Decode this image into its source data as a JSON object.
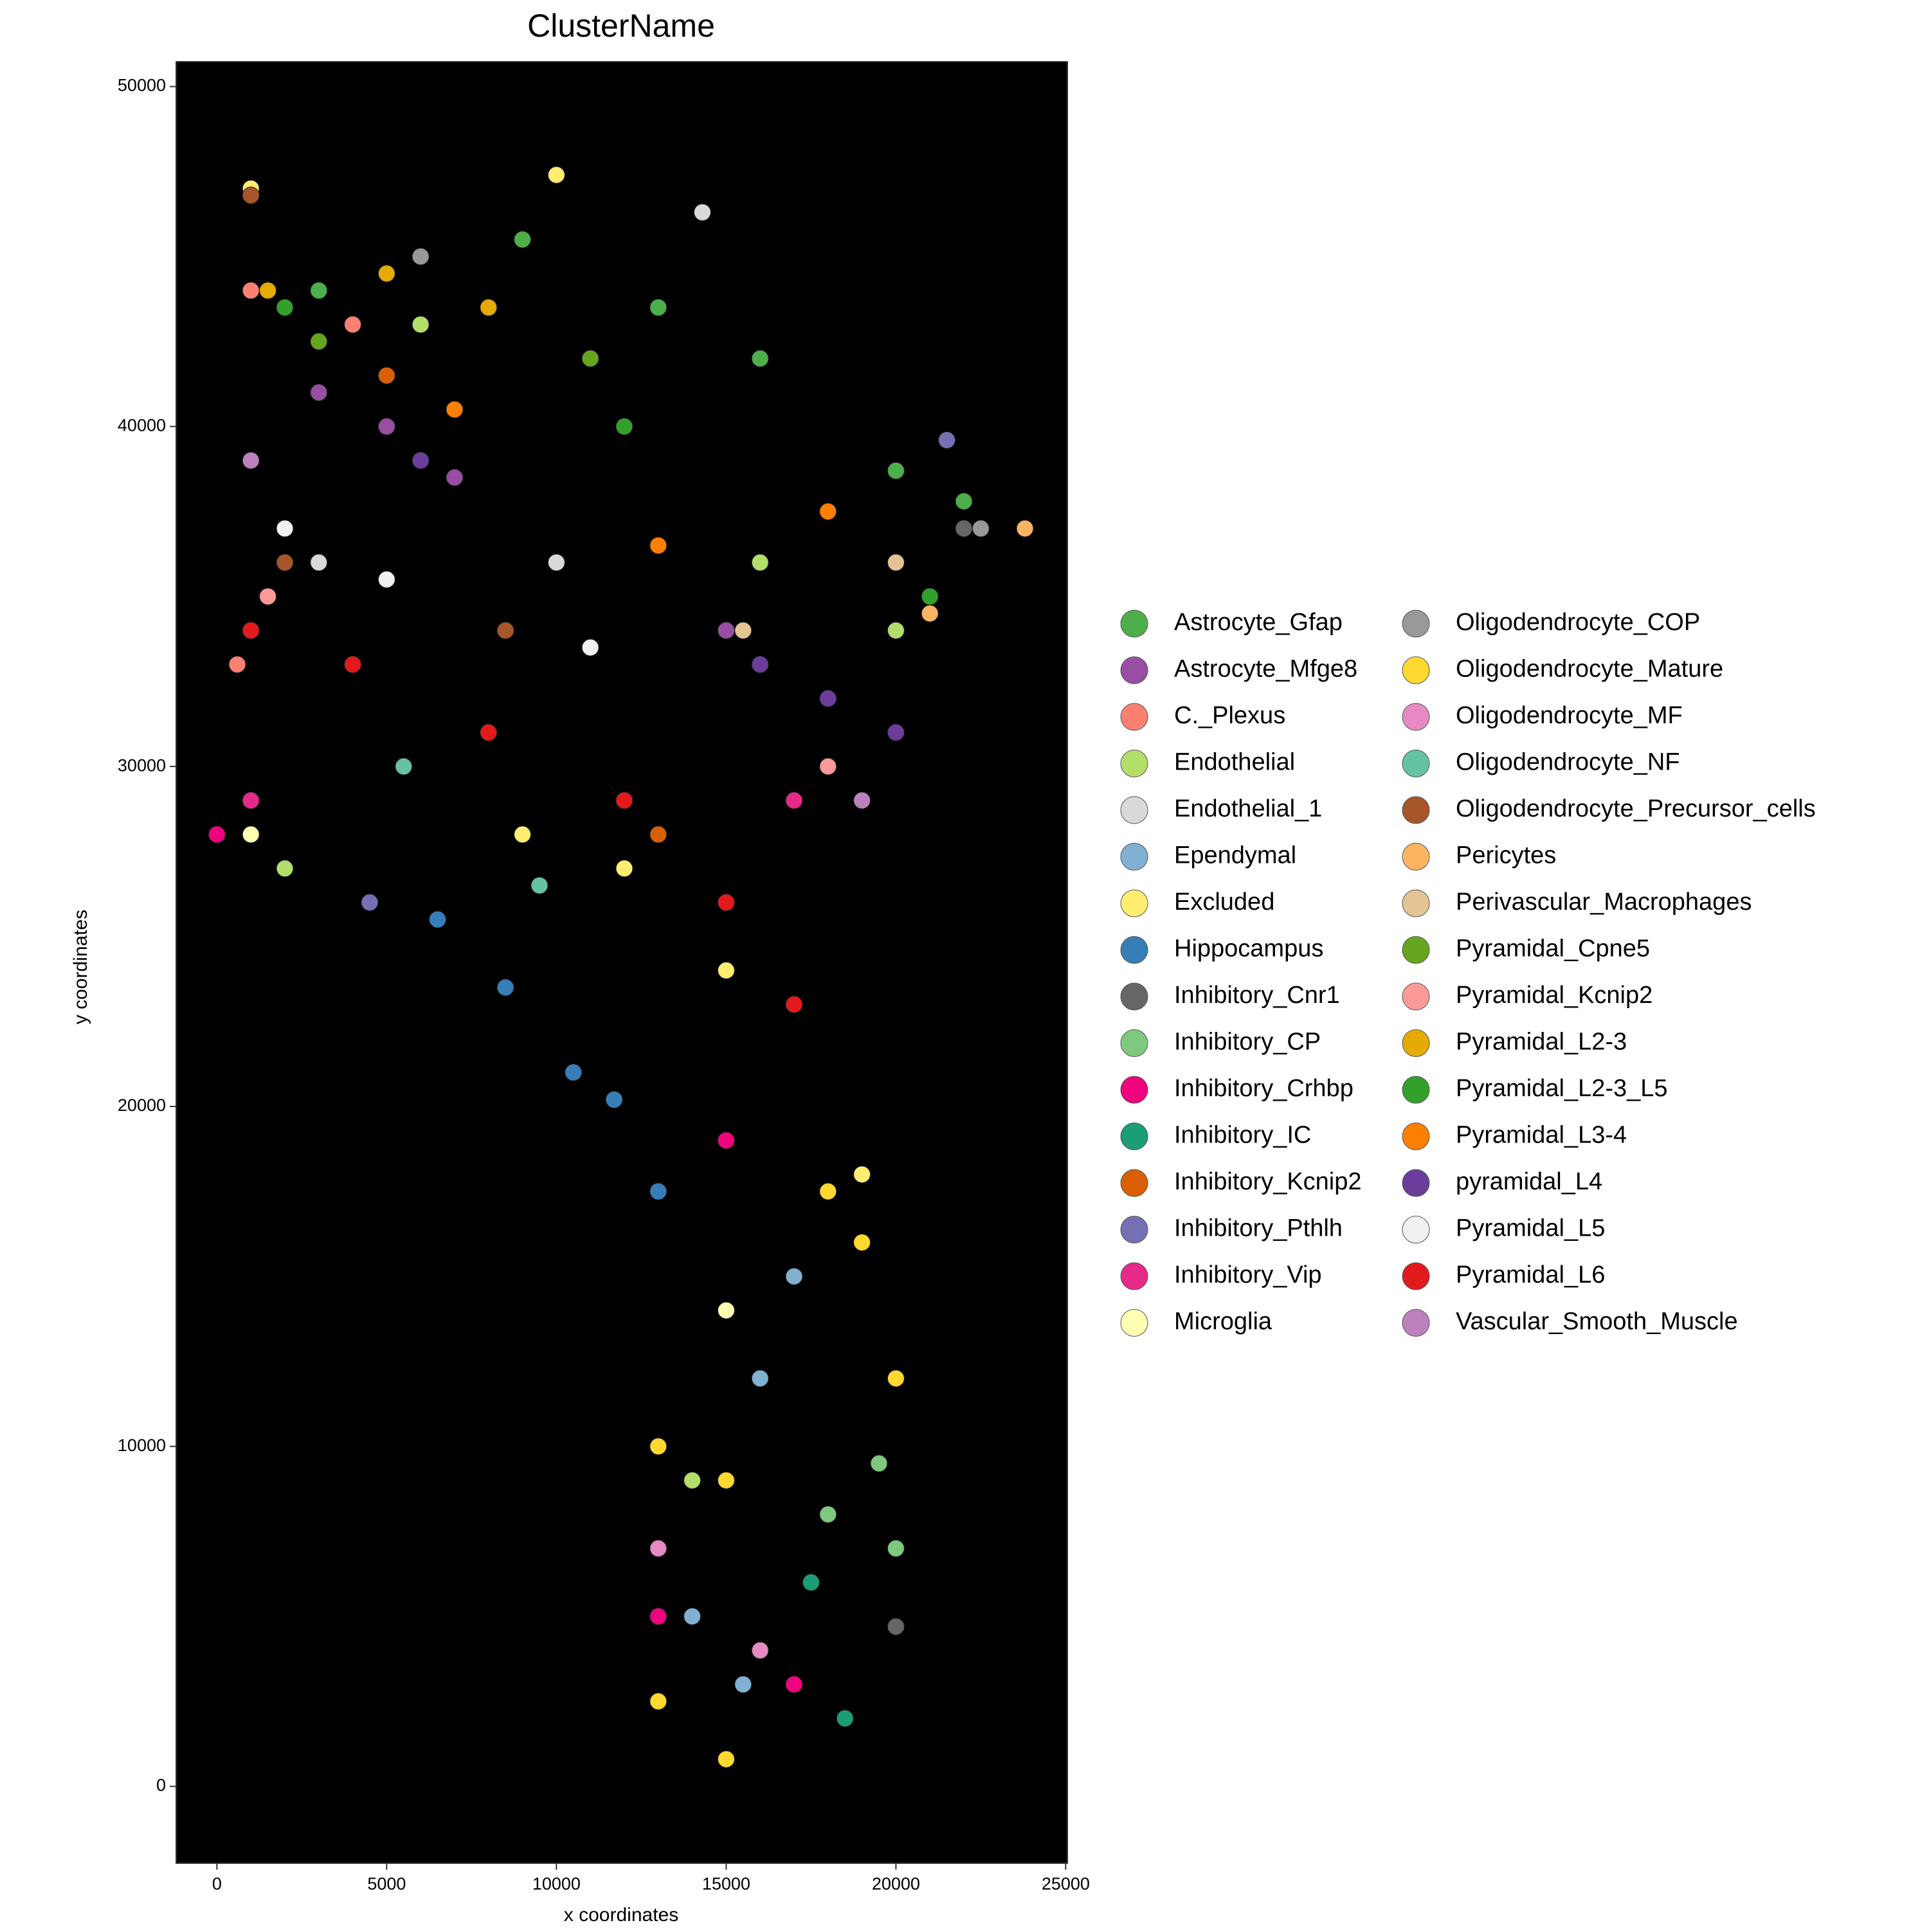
{
  "chart_data": {
    "type": "scatter",
    "title": "ClusterName",
    "x_label": "x coordinates",
    "y_label": "y coordinates",
    "xlim": [
      -1200,
      25050
    ],
    "ylim": [
      -2260,
      50730
    ],
    "xticks": [
      0,
      5000,
      10000,
      15000,
      20000,
      25000
    ],
    "yticks": [
      0,
      10000,
      20000,
      30000,
      40000,
      50000
    ],
    "background": "#000000",
    "series": [
      {
        "name": "Astrocyte_Gfap",
        "color": "#4DAF4A",
        "x": [
          3000,
          9000,
          13000,
          16000,
          20000,
          22000
        ],
        "y": [
          44000,
          45500,
          43500,
          42000,
          38700,
          37800
        ]
      },
      {
        "name": "Astrocyte_Mfge8",
        "color": "#984EA3",
        "x": [
          3000,
          5000,
          7000,
          15000
        ],
        "y": [
          41000,
          40000,
          38500,
          34000
        ]
      },
      {
        "name": "C._Plexus",
        "color": "#FB8072",
        "x": [
          1000,
          4000,
          600
        ],
        "y": [
          44000,
          43000,
          33000
        ]
      },
      {
        "name": "Endothelial",
        "color": "#B3DE69",
        "x": [
          6000,
          2000,
          16000,
          20000,
          14000
        ],
        "y": [
          43000,
          27000,
          36000,
          34000,
          9000
        ]
      },
      {
        "name": "Endothelial_1",
        "color": "#D9D9D9",
        "x": [
          14300,
          3000,
          10000
        ],
        "y": [
          46300,
          36000,
          36000
        ]
      },
      {
        "name": "Ependymal",
        "color": "#80B1D3",
        "x": [
          16000,
          14000,
          15500,
          17000
        ],
        "y": [
          12000,
          5000,
          3000,
          15000
        ]
      },
      {
        "name": "Excluded",
        "color": "#FFED6F",
        "x": [
          1000,
          10000,
          9000,
          15000,
          12000,
          19000
        ],
        "y": [
          47000,
          47400,
          28000,
          24000,
          27000,
          18000
        ]
      },
      {
        "name": "Hippocampus",
        "color": "#377EB8",
        "x": [
          6500,
          8500,
          10500,
          11700,
          13000
        ],
        "y": [
          25500,
          23500,
          21000,
          20200,
          17500
        ]
      },
      {
        "name": "Inhibitory_Cnr1",
        "color": "#666666",
        "x": [
          22000,
          20000
        ],
        "y": [
          37000,
          4700
        ]
      },
      {
        "name": "Inhibitory_CP",
        "color": "#7FC97F",
        "x": [
          20000,
          19500,
          18000
        ],
        "y": [
          7000,
          9500,
          8000
        ]
      },
      {
        "name": "Inhibitory_Crhbp",
        "color": "#F0027F",
        "x": [
          0,
          13000,
          17000,
          15000
        ],
        "y": [
          28000,
          5000,
          3000,
          19000
        ]
      },
      {
        "name": "Inhibitory_IC",
        "color": "#1B9E77",
        "x": [
          18500,
          17500
        ],
        "y": [
          2000,
          6000
        ]
      },
      {
        "name": "Inhibitory_Kcnip2",
        "color": "#D95F02",
        "x": [
          5000,
          13000
        ],
        "y": [
          41500,
          28000
        ]
      },
      {
        "name": "Inhibitory_Pthlh",
        "color": "#7570B3",
        "x": [
          21500,
          4500
        ],
        "y": [
          39600,
          26000
        ]
      },
      {
        "name": "Inhibitory_Vip",
        "color": "#E7298A",
        "x": [
          1000,
          17000
        ],
        "y": [
          29000,
          29000
        ]
      },
      {
        "name": "Microglia",
        "color": "#FFFFB3",
        "x": [
          1000,
          15000
        ],
        "y": [
          28000,
          14000
        ]
      },
      {
        "name": "Oligodendrocyte_COP",
        "color": "#999999",
        "x": [
          22500,
          6000
        ],
        "y": [
          37000,
          45000
        ]
      },
      {
        "name": "Oligodendrocyte_Mature",
        "color": "#FFD92F",
        "x": [
          13000,
          15000,
          19000,
          20000,
          18000,
          13000,
          15000
        ],
        "y": [
          10000,
          9000,
          16000,
          12000,
          17500,
          2500,
          800
        ]
      },
      {
        "name": "Oligodendrocyte_MF",
        "color": "#E78AC3",
        "x": [
          13000,
          16000
        ],
        "y": [
          7000,
          4000
        ]
      },
      {
        "name": "Oligodendrocyte_NF",
        "color": "#66C2A5",
        "x": [
          5500,
          9500
        ],
        "y": [
          30000,
          26500
        ]
      },
      {
        "name": "Oligodendrocyte_Precursor_cells",
        "color": "#A65628",
        "x": [
          1000,
          2000,
          8500
        ],
        "y": [
          46800,
          36000,
          34000
        ]
      },
      {
        "name": "Pericytes",
        "color": "#FDB462",
        "x": [
          23800,
          21000
        ],
        "y": [
          37000,
          34500
        ]
      },
      {
        "name": "Perivascular_Macrophages",
        "color": "#E5C494",
        "x": [
          15500,
          20000
        ],
        "y": [
          34000,
          36000
        ]
      },
      {
        "name": "Pyramidal_Cpne5",
        "color": "#66A61E",
        "x": [
          3000,
          11000
        ],
        "y": [
          42500,
          42000
        ]
      },
      {
        "name": "Pyramidal_Kcnip2",
        "color": "#FB9A99",
        "x": [
          1500,
          18000
        ],
        "y": [
          35000,
          30000
        ]
      },
      {
        "name": "Pyramidal_L2-3",
        "color": "#E6AB02",
        "x": [
          1500,
          5000,
          8000
        ],
        "y": [
          44000,
          44500,
          43500
        ]
      },
      {
        "name": "Pyramidal_L2-3_L5",
        "color": "#33A02C",
        "x": [
          2000,
          12000,
          21000
        ],
        "y": [
          43500,
          40000,
          35000
        ]
      },
      {
        "name": "Pyramidal_L3-4",
        "color": "#FF7F00",
        "x": [
          7000,
          13000,
          18000
        ],
        "y": [
          40500,
          36500,
          37500
        ]
      },
      {
        "name": "pyramidal_L4",
        "color": "#6A3D9A",
        "x": [
          6000,
          16000,
          18000,
          20000
        ],
        "y": [
          39000,
          33000,
          32000,
          31000
        ]
      },
      {
        "name": "Pyramidal_L5",
        "color": "#F0F0F0",
        "x": [
          5000,
          2000,
          11000
        ],
        "y": [
          35500,
          37000,
          33500
        ]
      },
      {
        "name": "Pyramidal_L6",
        "color": "#E31A1C",
        "x": [
          1000,
          4000,
          8000,
          12000,
          15000,
          17000
        ],
        "y": [
          34000,
          33000,
          31000,
          29000,
          26000,
          23000
        ]
      },
      {
        "name": "Vascular_Smooth_Muscle",
        "color": "#BC80BD",
        "x": [
          19000,
          1000
        ],
        "y": [
          29000,
          39000
        ]
      }
    ]
  }
}
